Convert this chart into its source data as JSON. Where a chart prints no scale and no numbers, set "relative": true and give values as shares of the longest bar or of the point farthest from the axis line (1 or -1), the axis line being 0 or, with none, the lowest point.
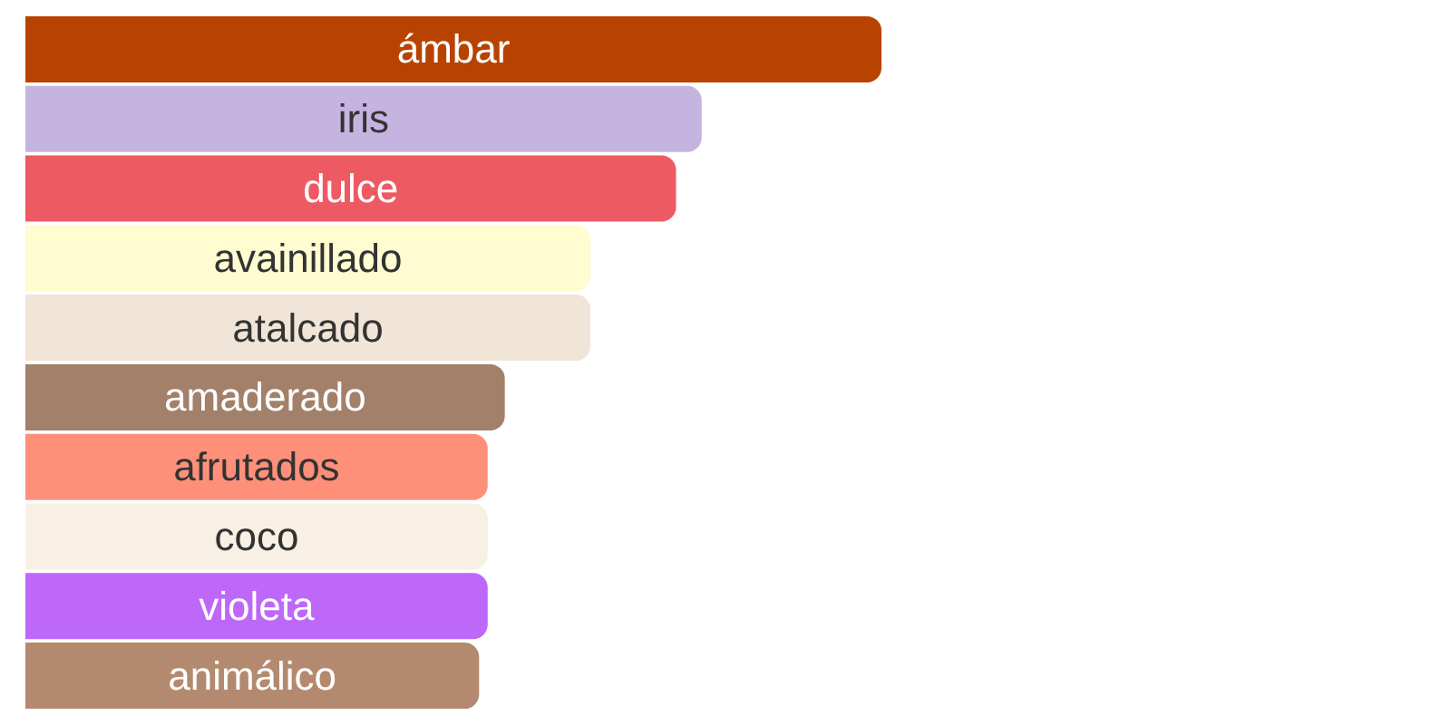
{
  "chart_data": {
    "type": "bar",
    "orientation": "horizontal",
    "relative": true,
    "categories": [
      "ámbar",
      "iris",
      "dulce",
      "avainillado",
      "atalcado",
      "amaderado",
      "afrutados",
      "coco",
      "violeta",
      "animálico"
    ],
    "values": [
      1,
      0.79,
      0.76,
      0.66,
      0.66,
      0.56,
      0.54,
      0.54,
      0.54,
      0.53
    ],
    "colors": [
      "#b84300",
      "#c6b4e0",
      "#ee5a64",
      "#fefcd0",
      "#f1e5d8",
      "#a2806a",
      "#fe907a",
      "#f8f0e4",
      "#be68fa",
      "#b38a6f"
    ]
  }
}
